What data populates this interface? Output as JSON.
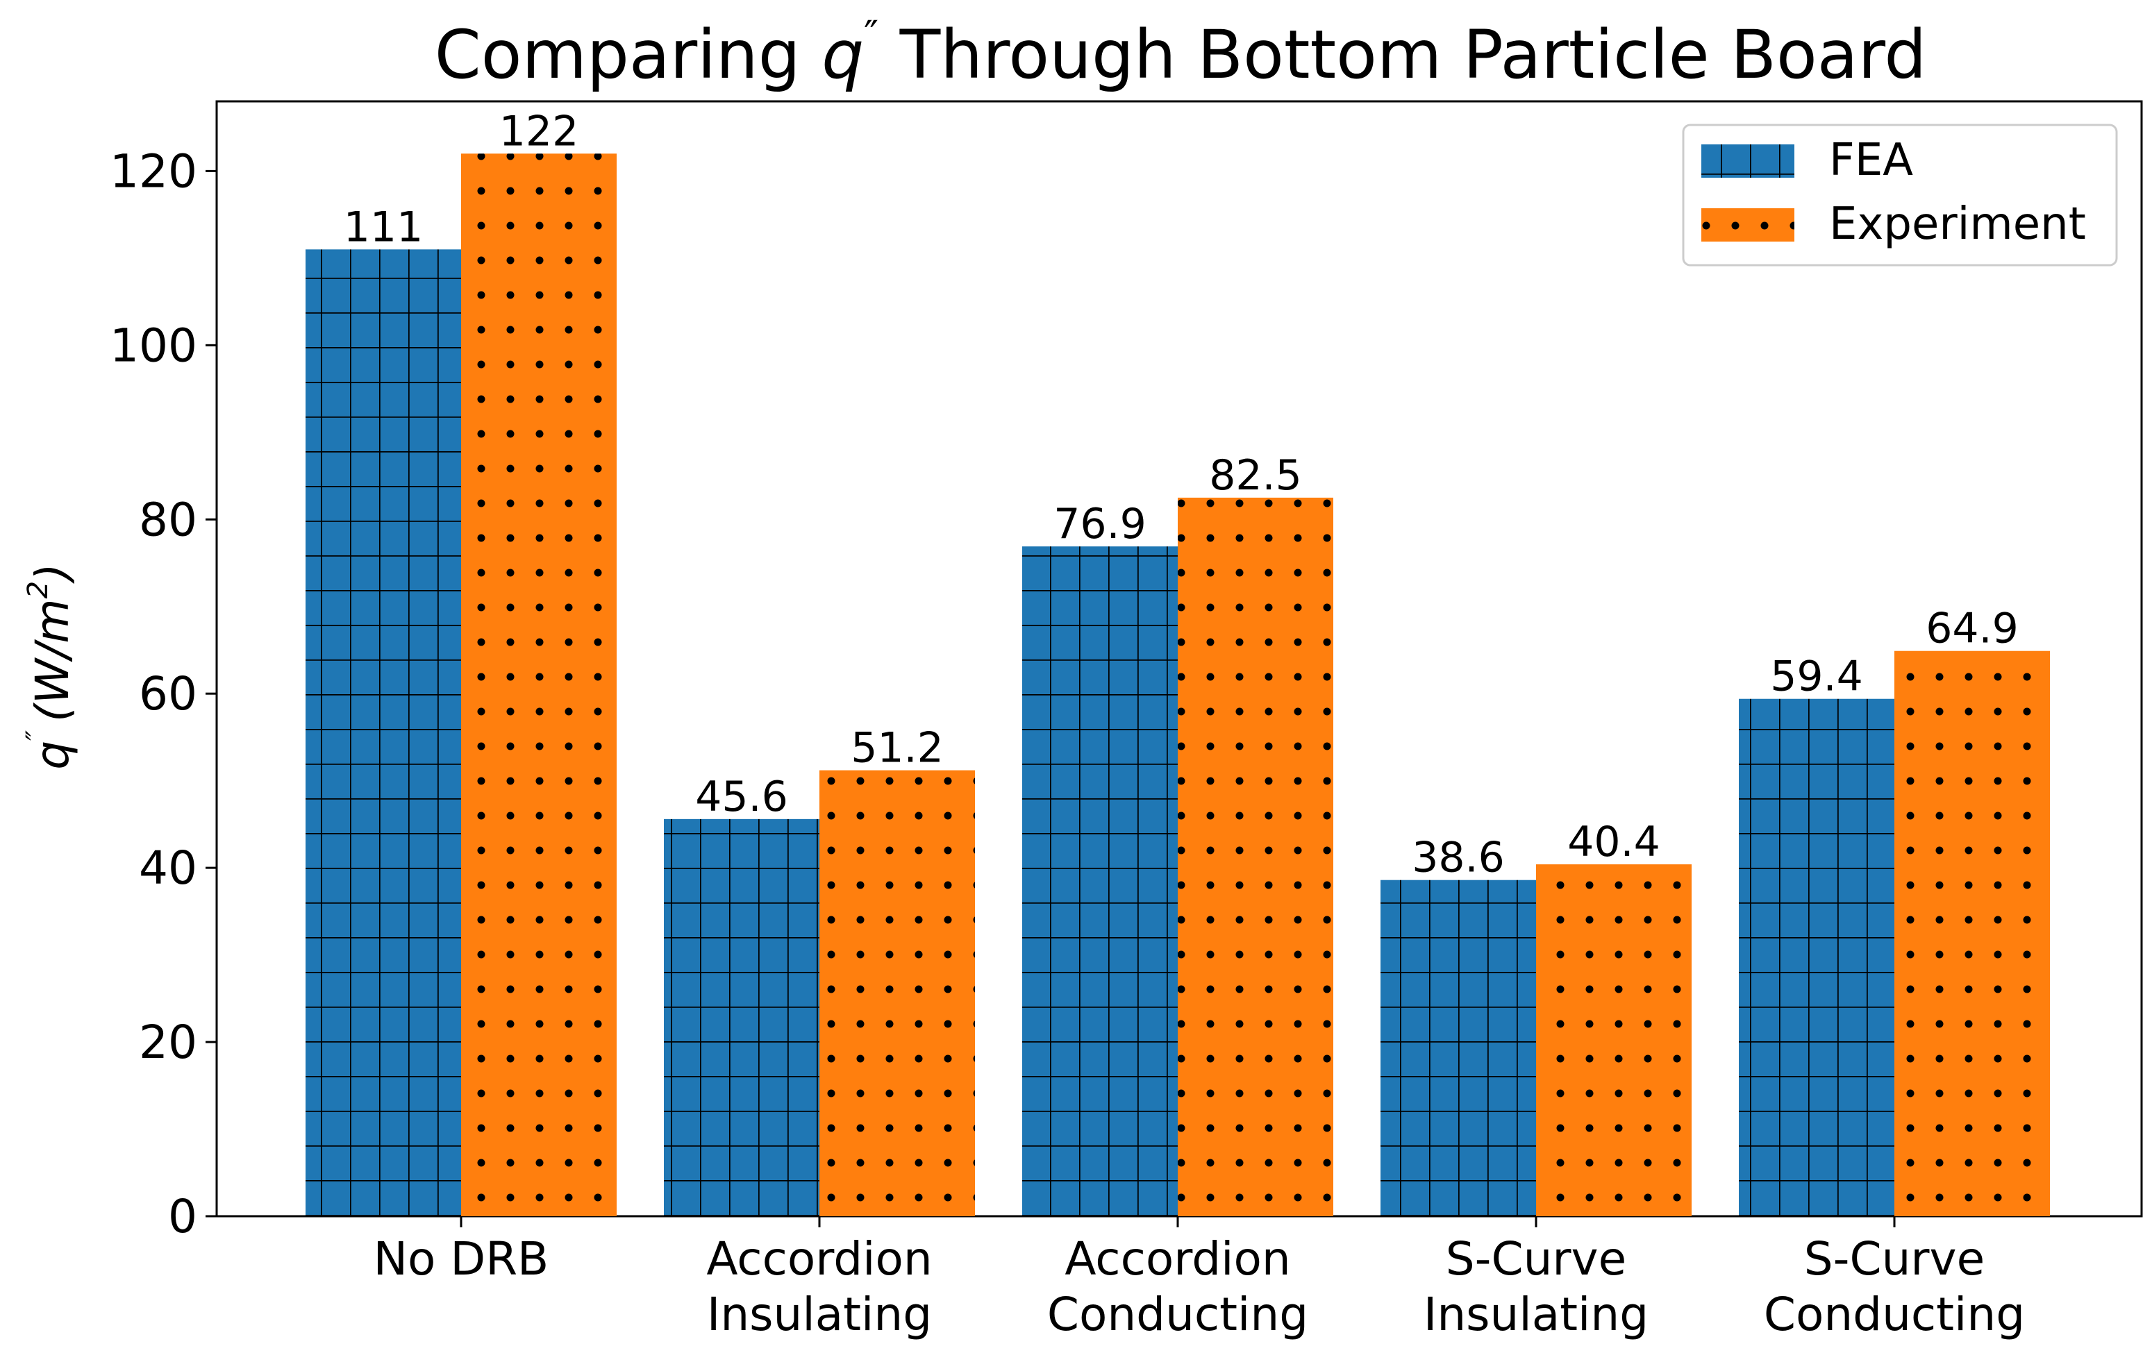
{
  "chart_data": {
    "type": "bar",
    "title_prefix": "Comparing ",
    "title_symbol": "q",
    "title_sup": "″",
    "title_suffix": " Through Bottom Particle Board",
    "ylabel_symbol": "q",
    "ylabel_sup": "″",
    "ylabel_units": "(W/m",
    "ylabel_units_sup": "2",
    "ylabel_units_close": ")",
    "categories": [
      [
        "No DRB"
      ],
      [
        "Accordion",
        "Insulating"
      ],
      [
        "Accordion",
        "Conducting"
      ],
      [
        "S-Curve",
        "Insulating"
      ],
      [
        "S-Curve",
        "Conducting"
      ]
    ],
    "series": [
      {
        "name": "FEA",
        "values": [
          111,
          45.6,
          76.9,
          38.6,
          59.4
        ],
        "labels": [
          "111",
          "45.6",
          "76.9",
          "38.6",
          "59.4"
        ],
        "color": "#1f77b4",
        "hatch": "grid"
      },
      {
        "name": "Experiment",
        "values": [
          122,
          51.2,
          82.5,
          40.4,
          64.9
        ],
        "labels": [
          "122",
          "51.2",
          "82.5",
          "40.4",
          "64.9"
        ],
        "color": "#ff7f0e",
        "hatch": "dots"
      }
    ],
    "ylim": [
      0,
      128
    ],
    "yticks": [
      0,
      20,
      40,
      60,
      80,
      100,
      120
    ],
    "legend_position": "top-right",
    "grid": false
  }
}
